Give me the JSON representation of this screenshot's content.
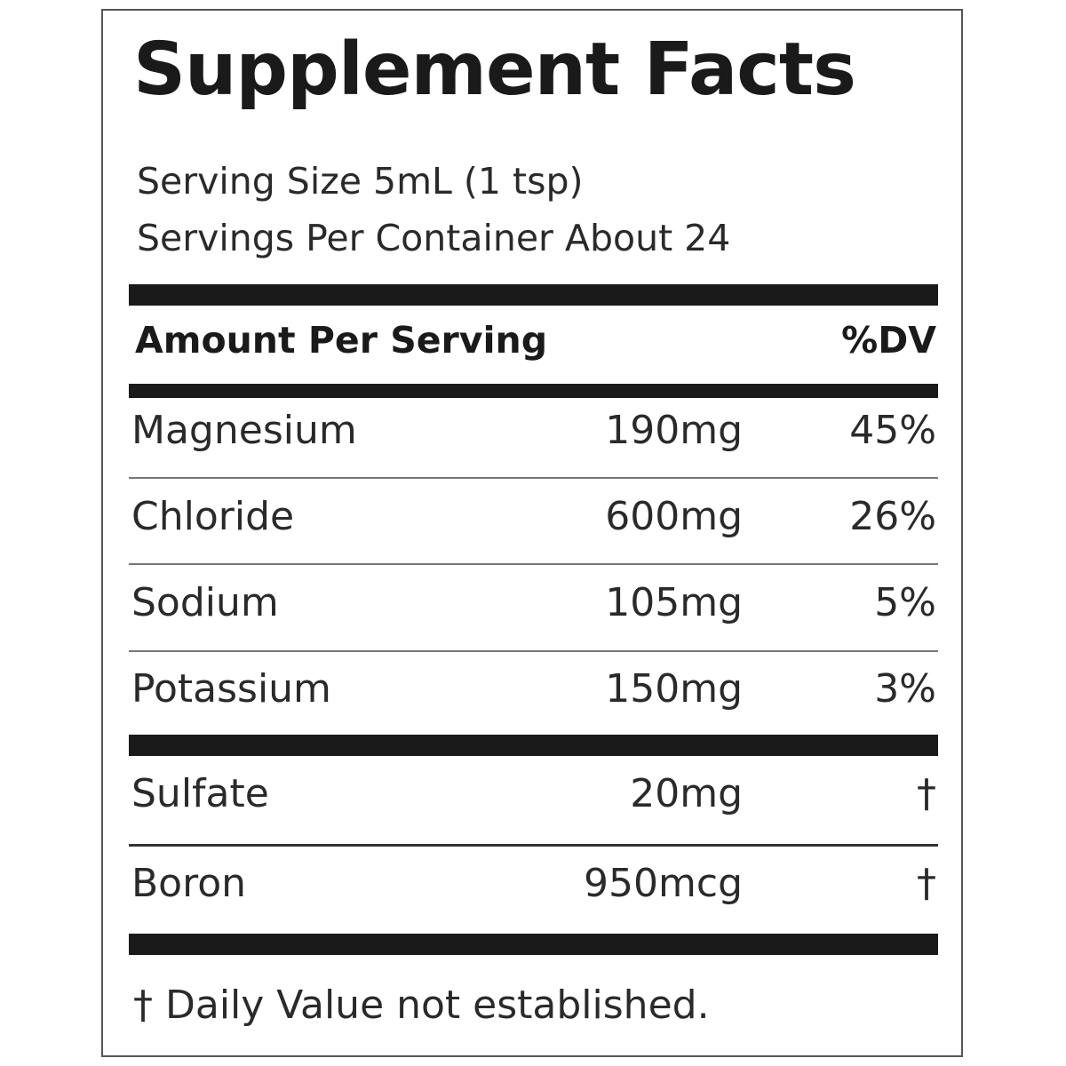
{
  "label": {
    "title": "Supplement Facts",
    "serving_size": "Serving Size 5mL (1 tsp)",
    "servings_per_container": "Servings Per Container About 24",
    "header_left": "Amount Per Serving",
    "header_right": "%DV",
    "rows": [
      {
        "name": "Magnesium",
        "amount": "190mg",
        "dv": "45%"
      },
      {
        "name": "Chloride",
        "amount": "600mg",
        "dv": "26%"
      },
      {
        "name": "Sodium",
        "amount": "105mg",
        "dv": "5%"
      },
      {
        "name": "Potassium",
        "amount": "150mg",
        "dv": "3%"
      },
      {
        "name": "Sulfate",
        "amount": "20mg",
        "dv": "†"
      },
      {
        "name": "Boron",
        "amount": "950mcg",
        "dv": "†"
      }
    ],
    "footnote": "† Daily Value not established."
  },
  "colors": {
    "text": "#222222",
    "bars": "#1a1a1a",
    "border": "#555555",
    "background": "#ffffff"
  }
}
